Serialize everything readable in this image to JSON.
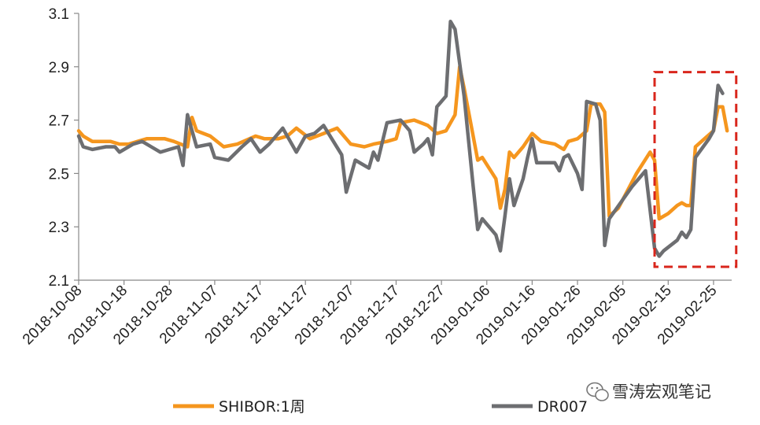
{
  "chart_data": {
    "type": "line",
    "title": "",
    "xlabel": "",
    "ylabel": "",
    "ylim": [
      2.1,
      3.1
    ],
    "yticks": [
      2.1,
      2.3,
      2.5,
      2.7,
      2.9,
      3.1
    ],
    "x_start": "2018-10-08",
    "x_end": "2019-03-01",
    "xticks": [
      "2018-10-08",
      "2018-10-18",
      "2018-10-28",
      "2018-11-07",
      "2018-11-17",
      "2018-11-27",
      "2018-12-07",
      "2018-12-17",
      "2018-12-27",
      "2019-01-06",
      "2019-01-16",
      "2019-01-26",
      "2019-02-05",
      "2019-02-15",
      "2019-02-25"
    ],
    "legend_position": "bottom",
    "grid": false,
    "highlight_box": {
      "x_from": "2019-02-12",
      "x_to": "2019-03-02",
      "y_from": 2.15,
      "y_to": 2.88,
      "color": "#d9261c",
      "style": "dashed"
    },
    "series": [
      {
        "name": "SHIBOR:1周",
        "color": "#f5961e",
        "points": [
          [
            "2018-10-08",
            2.66
          ],
          [
            "2018-10-09",
            2.64
          ],
          [
            "2018-10-11",
            2.62
          ],
          [
            "2018-10-13",
            2.62
          ],
          [
            "2018-10-15",
            2.62
          ],
          [
            "2018-10-17",
            2.61
          ],
          [
            "2018-10-19",
            2.61
          ],
          [
            "2018-10-21",
            2.62
          ],
          [
            "2018-10-23",
            2.63
          ],
          [
            "2018-10-25",
            2.63
          ],
          [
            "2018-10-27",
            2.63
          ],
          [
            "2018-10-29",
            2.62
          ],
          [
            "2018-11-01",
            2.6
          ],
          [
            "2018-11-02",
            2.71
          ],
          [
            "2018-11-03",
            2.66
          ],
          [
            "2018-11-06",
            2.64
          ],
          [
            "2018-11-09",
            2.6
          ],
          [
            "2018-11-12",
            2.61
          ],
          [
            "2018-11-16",
            2.64
          ],
          [
            "2018-11-18",
            2.63
          ],
          [
            "2018-11-21",
            2.63
          ],
          [
            "2018-11-23",
            2.64
          ],
          [
            "2018-11-25",
            2.67
          ],
          [
            "2018-11-28",
            2.63
          ],
          [
            "2018-12-01",
            2.65
          ],
          [
            "2018-12-04",
            2.67
          ],
          [
            "2018-12-07",
            2.61
          ],
          [
            "2018-12-10",
            2.6
          ],
          [
            "2018-12-12",
            2.61
          ],
          [
            "2018-12-15",
            2.62
          ],
          [
            "2018-12-17",
            2.63
          ],
          [
            "2018-12-18",
            2.69
          ],
          [
            "2018-12-21",
            2.7
          ],
          [
            "2018-12-24",
            2.68
          ],
          [
            "2018-12-26",
            2.65
          ],
          [
            "2018-12-28",
            2.66
          ],
          [
            "2018-12-30",
            2.72
          ],
          [
            "2018-12-31",
            2.9
          ],
          [
            "2019-01-01",
            2.82
          ],
          [
            "2019-01-04",
            2.55
          ],
          [
            "2019-01-05",
            2.56
          ],
          [
            "2019-01-08",
            2.48
          ],
          [
            "2019-01-09",
            2.37
          ],
          [
            "2019-01-10",
            2.44
          ],
          [
            "2019-01-11",
            2.58
          ],
          [
            "2019-01-12",
            2.56
          ],
          [
            "2019-01-14",
            2.6
          ],
          [
            "2019-01-16",
            2.65
          ],
          [
            "2019-01-18",
            2.62
          ],
          [
            "2019-01-21",
            2.61
          ],
          [
            "2019-01-23",
            2.59
          ],
          [
            "2019-01-24",
            2.62
          ],
          [
            "2019-01-26",
            2.63
          ],
          [
            "2019-01-28",
            2.66
          ],
          [
            "2019-01-29",
            2.76
          ],
          [
            "2019-01-31",
            2.76
          ],
          [
            "2019-02-01",
            2.73
          ],
          [
            "2019-02-02",
            2.34
          ],
          [
            "2019-02-04",
            2.37
          ],
          [
            "2019-02-08",
            2.5
          ],
          [
            "2019-02-11",
            2.58
          ],
          [
            "2019-02-12",
            2.55
          ],
          [
            "2019-02-13",
            2.33
          ],
          [
            "2019-02-15",
            2.35
          ],
          [
            "2019-02-17",
            2.38
          ],
          [
            "2019-02-18",
            2.39
          ],
          [
            "2019-02-19",
            2.38
          ],
          [
            "2019-02-20",
            2.38
          ],
          [
            "2019-02-21",
            2.6
          ],
          [
            "2019-02-25",
            2.66
          ],
          [
            "2019-02-26",
            2.75
          ],
          [
            "2019-02-27",
            2.75
          ],
          [
            "2019-02-28",
            2.66
          ]
        ]
      },
      {
        "name": "DR007",
        "color": "#6d6e71",
        "points": [
          [
            "2018-10-08",
            2.64
          ],
          [
            "2018-10-09",
            2.6
          ],
          [
            "2018-10-11",
            2.59
          ],
          [
            "2018-10-14",
            2.6
          ],
          [
            "2018-10-16",
            2.6
          ],
          [
            "2018-10-17",
            2.58
          ],
          [
            "2018-10-18",
            2.59
          ],
          [
            "2018-10-20",
            2.61
          ],
          [
            "2018-10-22",
            2.62
          ],
          [
            "2018-10-24",
            2.6
          ],
          [
            "2018-10-26",
            2.58
          ],
          [
            "2018-10-28",
            2.59
          ],
          [
            "2018-10-30",
            2.6
          ],
          [
            "2018-10-31",
            2.53
          ],
          [
            "2018-11-01",
            2.72
          ],
          [
            "2018-11-03",
            2.6
          ],
          [
            "2018-11-06",
            2.61
          ],
          [
            "2018-11-07",
            2.56
          ],
          [
            "2018-11-10",
            2.55
          ],
          [
            "2018-11-13",
            2.6
          ],
          [
            "2018-11-15",
            2.63
          ],
          [
            "2018-11-17",
            2.58
          ],
          [
            "2018-11-19",
            2.61
          ],
          [
            "2018-11-22",
            2.67
          ],
          [
            "2018-11-25",
            2.58
          ],
          [
            "2018-11-27",
            2.64
          ],
          [
            "2018-11-29",
            2.65
          ],
          [
            "2018-12-01",
            2.68
          ],
          [
            "2018-12-05",
            2.57
          ],
          [
            "2018-12-06",
            2.43
          ],
          [
            "2018-12-08",
            2.55
          ],
          [
            "2018-12-11",
            2.52
          ],
          [
            "2018-12-12",
            2.58
          ],
          [
            "2018-12-13",
            2.55
          ],
          [
            "2018-12-15",
            2.69
          ],
          [
            "2018-12-18",
            2.7
          ],
          [
            "2018-12-20",
            2.66
          ],
          [
            "2018-12-21",
            2.58
          ],
          [
            "2018-12-23",
            2.61
          ],
          [
            "2018-12-24",
            2.63
          ],
          [
            "2018-12-25",
            2.57
          ],
          [
            "2018-12-26",
            2.75
          ],
          [
            "2018-12-28",
            2.79
          ],
          [
            "2018-12-29",
            3.07
          ],
          [
            "2018-12-30",
            3.04
          ],
          [
            "2019-01-01",
            2.79
          ],
          [
            "2019-01-03",
            2.45
          ],
          [
            "2019-01-04",
            2.29
          ],
          [
            "2019-01-05",
            2.33
          ],
          [
            "2019-01-07",
            2.29
          ],
          [
            "2019-01-08",
            2.27
          ],
          [
            "2019-01-09",
            2.21
          ],
          [
            "2019-01-10",
            2.34
          ],
          [
            "2019-01-11",
            2.48
          ],
          [
            "2019-01-12",
            2.38
          ],
          [
            "2019-01-14",
            2.48
          ],
          [
            "2019-01-15",
            2.56
          ],
          [
            "2019-01-16",
            2.63
          ],
          [
            "2019-01-17",
            2.54
          ],
          [
            "2019-01-19",
            2.54
          ],
          [
            "2019-01-21",
            2.54
          ],
          [
            "2019-01-22",
            2.51
          ],
          [
            "2019-01-23",
            2.56
          ],
          [
            "2019-01-24",
            2.57
          ],
          [
            "2019-01-26",
            2.5
          ],
          [
            "2019-01-27",
            2.44
          ],
          [
            "2019-01-28",
            2.77
          ],
          [
            "2019-01-30",
            2.76
          ],
          [
            "2019-01-31",
            2.7
          ],
          [
            "2019-02-01",
            2.23
          ],
          [
            "2019-02-02",
            2.33
          ],
          [
            "2019-02-07",
            2.45
          ],
          [
            "2019-02-10",
            2.51
          ],
          [
            "2019-02-12",
            2.22
          ],
          [
            "2019-02-13",
            2.19
          ],
          [
            "2019-02-14",
            2.21
          ],
          [
            "2019-02-17",
            2.25
          ],
          [
            "2019-02-18",
            2.28
          ],
          [
            "2019-02-19",
            2.26
          ],
          [
            "2019-02-20",
            2.29
          ],
          [
            "2019-02-21",
            2.56
          ],
          [
            "2019-02-24",
            2.63
          ],
          [
            "2019-02-25",
            2.66
          ],
          [
            "2019-02-26",
            2.83
          ],
          [
            "2019-02-27",
            2.8
          ]
        ]
      }
    ]
  },
  "watermark": {
    "text": "雪涛宏观笔记",
    "icon": "wechat-icon"
  }
}
